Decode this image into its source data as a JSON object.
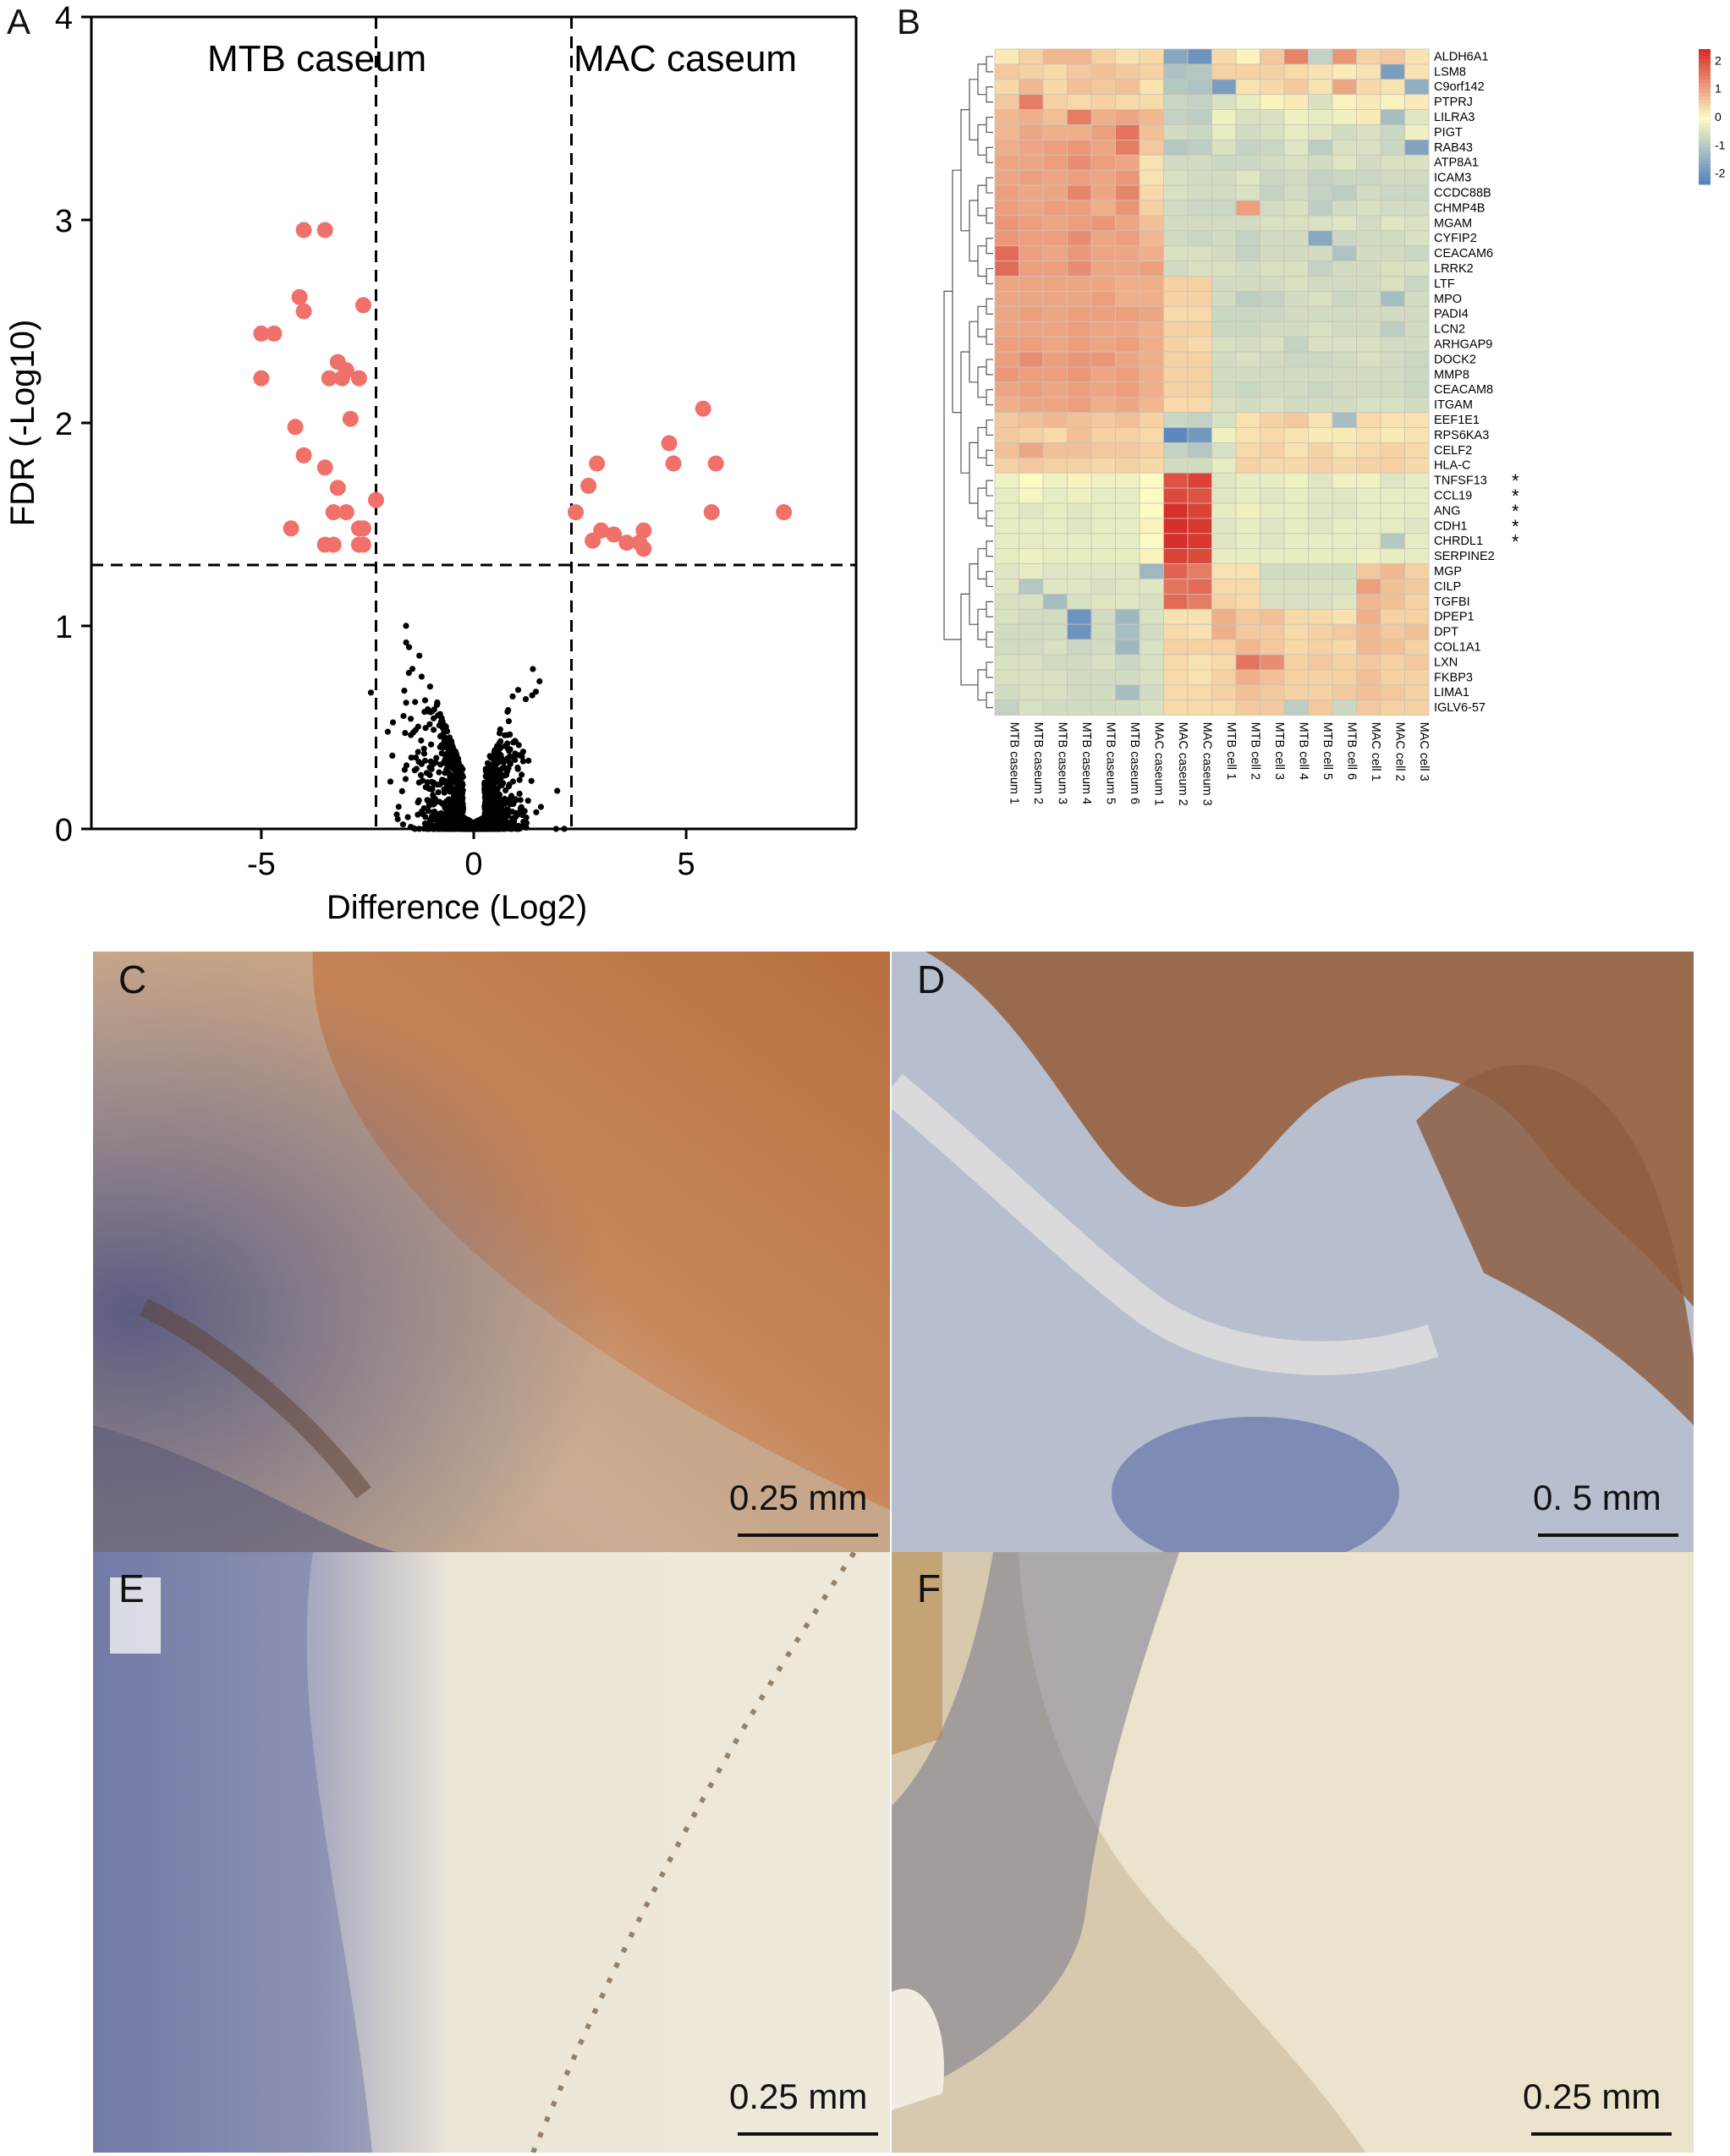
{
  "panels": {
    "a": {
      "letter": "A"
    },
    "b": {
      "letter": "B"
    },
    "c": {
      "letter": "C",
      "scalebar": "0.25 mm"
    },
    "d": {
      "letter": "D",
      "scalebar": "0. 5 mm"
    },
    "e": {
      "letter": "E",
      "scalebar": "0.25 mm"
    },
    "f": {
      "letter": "F",
      "scalebar": "0.25 mm"
    }
  },
  "colors": {
    "significant": "#f0706a",
    "nonsignificant": "#000000",
    "heat_high": "#d7302a",
    "heat_mid": "#fdfbc4",
    "heat_low": "#4f7fbd"
  },
  "chart_data": [
    {
      "type": "scatter",
      "xlabel": "Difference (Log2)",
      "ylabel": "FDR (-Log10)",
      "xlim": [
        -9,
        9
      ],
      "ylim": [
        0,
        4
      ],
      "xticks": [
        -5,
        0,
        5
      ],
      "yticks": [
        0,
        1,
        2,
        3,
        4
      ],
      "region_labels": {
        "left": "MTB caseum",
        "right": "MAC caseum"
      },
      "thresholds": {
        "x": [
          -2.3,
          2.3
        ],
        "y": 1.3
      },
      "significant_points": [
        [
          -4.0,
          2.95
        ],
        [
          -3.5,
          2.95
        ],
        [
          -4.1,
          2.62
        ],
        [
          -4.0,
          2.55
        ],
        [
          -2.6,
          2.58
        ],
        [
          -5.0,
          2.44
        ],
        [
          -4.7,
          2.44
        ],
        [
          -3.2,
          2.3
        ],
        [
          -3.0,
          2.26
        ],
        [
          -2.7,
          2.22
        ],
        [
          -3.4,
          2.22
        ],
        [
          -3.1,
          2.22
        ],
        [
          -5.0,
          2.22
        ],
        [
          -4.2,
          1.98
        ],
        [
          -2.9,
          2.02
        ],
        [
          -4.0,
          1.84
        ],
        [
          -3.5,
          1.78
        ],
        [
          -3.2,
          1.68
        ],
        [
          -3.0,
          1.56
        ],
        [
          -3.3,
          1.56
        ],
        [
          -2.3,
          1.62
        ],
        [
          -4.3,
          1.48
        ],
        [
          -2.7,
          1.48
        ],
        [
          -2.6,
          1.48
        ],
        [
          -3.5,
          1.4
        ],
        [
          -3.3,
          1.4
        ],
        [
          -2.7,
          1.4
        ],
        [
          -2.6,
          1.4
        ],
        [
          5.4,
          2.07
        ],
        [
          4.6,
          1.9
        ],
        [
          5.7,
          1.8
        ],
        [
          4.7,
          1.8
        ],
        [
          2.9,
          1.8
        ],
        [
          2.7,
          1.69
        ],
        [
          2.4,
          1.56
        ],
        [
          5.6,
          1.56
        ],
        [
          7.3,
          1.56
        ],
        [
          3.0,
          1.47
        ],
        [
          2.8,
          1.42
        ],
        [
          3.3,
          1.45
        ],
        [
          3.6,
          1.41
        ],
        [
          4.0,
          1.47
        ],
        [
          3.9,
          1.41
        ],
        [
          4.0,
          1.38
        ]
      ],
      "background": {
        "description_points": "dense cloud of non-significant proteins",
        "n": 1900
      }
    },
    {
      "type": "heatmap",
      "legend_ticks": [
        2,
        1,
        0,
        -1,
        -2
      ],
      "columns": [
        "MTB caseum 1",
        "MTB caseum 2",
        "MTB caseum 3",
        "MTB caseum 4",
        "MTB caseum 5",
        "MTB caseum 6",
        "MAC caseum 1",
        "MAC caseum 2",
        "MAC caseum 3",
        "MTB cell 1",
        "MTB cell 2",
        "MTB cell 3",
        "MTB cell 4",
        "MTB cell 5",
        "MTB cell 6",
        "MAC cell 1",
        "MAC cell 2",
        "MAC cell 3"
      ],
      "rows": [
        "ALDH6A1",
        "LSM8",
        "C9orf142",
        "PTPRJ",
        "LILRA3",
        "PIGT",
        "RAB43",
        "ATP8A1",
        "ICAM3",
        "CCDC88B",
        "CHMP4B",
        "MGAM",
        "CYFIP2",
        "CEACAM6",
        "LRRK2",
        "LTF",
        "MPO",
        "PADI4",
        "LCN2",
        "ARHGAP9",
        "DOCK2",
        "MMP8",
        "CEACAM8",
        "ITGAM",
        "EEF1E1",
        "RPS6KA3",
        "CELF2",
        "HLA-C",
        "TNFSF13",
        "CCL19",
        "ANG",
        "CDH1",
        "CHRDL1",
        "SERPINE2",
        "MGP",
        "CILP",
        "TGFBI",
        "DPEP1",
        "DPT",
        "COL1A1",
        "LXN",
        "FKBP3",
        "LIMA1",
        "IGLV6-57"
      ],
      "starred_rows": [
        "TNFSF13",
        "CCL19",
        "ANG",
        "CDH1",
        "CHRDL1"
      ],
      "star": "*",
      "values": [
        [
          0.2,
          0.5,
          0.8,
          0.8,
          0.5,
          0.3,
          0.4,
          -1.6,
          -2.0,
          0.4,
          0.1,
          0.6,
          1.4,
          -0.8,
          1.2,
          0.5,
          0.6,
          0.3
        ],
        [
          0.6,
          0.5,
          0.4,
          0.6,
          0.7,
          0.6,
          0.5,
          -1.1,
          -1.0,
          0.5,
          0.5,
          0.5,
          0.4,
          0.3,
          0.2,
          0.3,
          -1.8,
          0.3
        ],
        [
          0.4,
          0.8,
          0.4,
          0.7,
          0.6,
          0.7,
          0.3,
          -1.0,
          -1.1,
          -1.8,
          0.3,
          0.4,
          0.6,
          0.3,
          1.0,
          0.4,
          0.3,
          -1.5
        ],
        [
          0.6,
          1.5,
          0.5,
          0.4,
          0.5,
          0.4,
          0.4,
          -0.7,
          -0.8,
          -0.5,
          -0.3,
          0.1,
          0.2,
          -0.5,
          0.1,
          0.2,
          0.1,
          0.2
        ],
        [
          0.8,
          0.9,
          0.7,
          1.5,
          0.9,
          1.0,
          0.8,
          -0.8,
          -0.9,
          -0.2,
          -0.5,
          -0.5,
          -0.2,
          -0.3,
          -0.2,
          0.2,
          -1.2,
          -0.4
        ],
        [
          0.8,
          1.0,
          0.9,
          0.9,
          1.1,
          1.6,
          0.7,
          -0.6,
          -0.7,
          -0.3,
          -0.6,
          -0.5,
          -0.3,
          -0.4,
          -0.6,
          -0.5,
          -0.7,
          -0.2
        ],
        [
          0.9,
          1.0,
          1.1,
          1.2,
          1.0,
          1.5,
          0.6,
          -1.0,
          -0.9,
          -0.5,
          -0.8,
          -0.7,
          -0.4,
          -0.9,
          -0.5,
          -0.5,
          -0.7,
          -1.7
        ],
        [
          1.0,
          1.0,
          1.1,
          1.3,
          1.1,
          1.0,
          0.3,
          -0.6,
          -0.6,
          -0.7,
          -0.7,
          -0.6,
          -0.5,
          -0.6,
          -0.4,
          -0.6,
          -0.5,
          -0.5
        ],
        [
          1.0,
          1.1,
          1.0,
          1.1,
          1.0,
          1.2,
          0.3,
          -0.5,
          -0.6,
          -0.6,
          -0.4,
          -0.7,
          -0.6,
          -0.8,
          -0.7,
          -0.7,
          -0.6,
          -0.6
        ],
        [
          1.1,
          1.0,
          1.0,
          1.4,
          1.0,
          1.4,
          0.4,
          -0.5,
          -0.6,
          -0.6,
          -0.5,
          -0.8,
          -0.6,
          -0.8,
          -0.9,
          -0.6,
          -0.7,
          -0.7
        ],
        [
          1.1,
          1.0,
          1.1,
          1.1,
          0.9,
          1.2,
          0.5,
          -0.6,
          -0.7,
          -0.7,
          1.1,
          -0.6,
          -0.5,
          -0.9,
          -0.6,
          -0.5,
          -0.6,
          -0.6
        ],
        [
          1.2,
          1.1,
          1.0,
          1.1,
          1.2,
          1.0,
          0.7,
          -0.6,
          -0.6,
          -0.6,
          -0.6,
          -0.5,
          -0.5,
          -0.5,
          -0.4,
          -0.6,
          -0.4,
          -0.5
        ],
        [
          1.2,
          1.1,
          1.1,
          1.3,
          1.0,
          1.1,
          0.8,
          -0.6,
          -0.7,
          -0.6,
          -0.8,
          -0.6,
          -0.6,
          -1.6,
          -0.7,
          -0.6,
          -0.6,
          -0.5
        ],
        [
          1.7,
          1.1,
          1.0,
          1.2,
          1.0,
          1.0,
          0.9,
          -0.5,
          -0.5,
          -0.6,
          -0.8,
          -0.6,
          -0.6,
          -0.6,
          -1.1,
          -0.6,
          -0.6,
          -0.7
        ],
        [
          1.7,
          1.1,
          1.1,
          1.3,
          1.0,
          1.0,
          1.1,
          -0.6,
          -0.5,
          -0.5,
          -0.6,
          -0.5,
          -0.5,
          -0.8,
          -0.6,
          -0.6,
          -0.5,
          -0.5
        ],
        [
          1.0,
          1.0,
          1.0,
          1.0,
          1.0,
          0.9,
          0.9,
          0.5,
          0.5,
          -0.6,
          -0.6,
          -0.6,
          -0.5,
          -0.6,
          -0.6,
          -0.6,
          -0.5,
          -0.7
        ],
        [
          1.0,
          1.0,
          1.0,
          1.0,
          1.1,
          0.9,
          0.9,
          0.5,
          0.5,
          -0.6,
          -0.9,
          -0.8,
          -0.6,
          -0.5,
          -0.7,
          -0.6,
          -1.2,
          -0.6
        ],
        [
          1.0,
          1.1,
          1.0,
          1.1,
          1.1,
          1.1,
          1.0,
          0.4,
          0.4,
          -0.7,
          -0.7,
          -0.7,
          -0.6,
          -0.6,
          -0.6,
          -0.6,
          -0.6,
          -0.6
        ],
        [
          1.0,
          1.0,
          1.0,
          1.1,
          1.0,
          1.0,
          0.9,
          0.5,
          0.5,
          -0.7,
          -0.7,
          -0.6,
          -0.6,
          -0.5,
          -0.6,
          -0.6,
          -0.9,
          -0.6
        ],
        [
          1.1,
          1.1,
          1.0,
          1.1,
          1.0,
          1.1,
          0.9,
          0.5,
          0.4,
          -0.5,
          -0.6,
          -0.5,
          -0.8,
          -0.5,
          -0.5,
          -0.5,
          -0.6,
          -0.6
        ],
        [
          1.1,
          1.3,
          1.1,
          1.2,
          1.2,
          1.0,
          0.9,
          0.5,
          0.5,
          -0.6,
          -0.5,
          -0.6,
          -0.7,
          -0.7,
          -0.6,
          -0.5,
          -0.6,
          -0.7
        ],
        [
          1.2,
          1.1,
          1.1,
          1.2,
          1.0,
          1.1,
          0.9,
          0.5,
          0.5,
          -0.6,
          -0.6,
          -0.6,
          -0.6,
          -0.6,
          -0.6,
          -0.6,
          -0.6,
          -0.7
        ],
        [
          1.0,
          1.1,
          1.0,
          1.1,
          1.0,
          1.1,
          0.9,
          0.5,
          0.5,
          -0.6,
          -0.7,
          -0.6,
          -0.6,
          -0.7,
          -0.6,
          -0.6,
          -0.6,
          -0.7
        ],
        [
          0.9,
          1.0,
          1.0,
          1.1,
          0.9,
          1.0,
          0.8,
          0.4,
          0.4,
          -0.5,
          -0.6,
          -0.5,
          -0.6,
          -0.6,
          -0.6,
          -0.5,
          -0.5,
          -0.6
        ],
        [
          0.6,
          0.7,
          0.8,
          0.7,
          0.6,
          0.7,
          0.5,
          -0.7,
          -0.8,
          -0.5,
          0.3,
          0.5,
          0.6,
          0.3,
          -1.2,
          0.4,
          0.3,
          0.3
        ],
        [
          0.6,
          0.5,
          0.4,
          0.7,
          0.5,
          0.5,
          0.4,
          -2.2,
          -1.9,
          -0.2,
          0.3,
          0.4,
          0.3,
          0.2,
          0.2,
          0.3,
          0.2,
          0.3
        ],
        [
          0.7,
          1.0,
          0.7,
          0.7,
          0.6,
          0.6,
          0.5,
          -0.8,
          -1.0,
          -0.5,
          0.4,
          0.5,
          0.3,
          0.5,
          0.3,
          0.4,
          0.5,
          0.4
        ],
        [
          0.5,
          0.6,
          0.5,
          0.5,
          0.4,
          0.5,
          0.4,
          -0.6,
          -0.6,
          -0.3,
          0.5,
          0.4,
          0.4,
          0.5,
          0.4,
          0.5,
          0.5,
          0.4
        ],
        [
          -0.2,
          0.0,
          -0.2,
          0.1,
          -0.2,
          -0.2,
          0.0,
          2.0,
          2.2,
          -0.4,
          -0.3,
          -0.3,
          -0.2,
          -0.4,
          -0.2,
          -0.2,
          -0.4,
          -0.3
        ],
        [
          -0.3,
          -0.1,
          -0.3,
          -0.2,
          -0.3,
          -0.3,
          0.0,
          2.1,
          2.0,
          -0.4,
          -0.3,
          -0.4,
          -0.3,
          -0.4,
          -0.4,
          -0.3,
          -0.3,
          -0.3
        ],
        [
          -0.3,
          -0.4,
          -0.3,
          -0.4,
          -0.3,
          -0.3,
          0.0,
          2.4,
          2.2,
          -0.3,
          -0.2,
          -0.3,
          -0.3,
          -0.4,
          -0.4,
          -0.3,
          -0.3,
          -0.3
        ],
        [
          -0.3,
          -0.3,
          -0.3,
          -0.4,
          -0.3,
          -0.3,
          0.1,
          2.4,
          2.3,
          -0.4,
          -0.3,
          -0.4,
          -0.3,
          -0.4,
          -0.3,
          -0.3,
          -0.3,
          -0.4
        ],
        [
          -0.3,
          -0.3,
          -0.3,
          -0.3,
          -0.3,
          -0.3,
          0.0,
          2.4,
          2.3,
          -0.4,
          -0.3,
          -0.4,
          -0.3,
          -0.3,
          -0.3,
          -0.3,
          -1.0,
          -0.3
        ],
        [
          -0.3,
          -0.2,
          -0.3,
          -0.3,
          -0.3,
          -0.3,
          0.1,
          2.2,
          2.1,
          -0.3,
          -0.3,
          -0.3,
          -0.3,
          -0.3,
          -0.3,
          -0.2,
          -0.3,
          -0.3
        ],
        [
          -0.4,
          -0.3,
          -0.4,
          -0.4,
          -0.4,
          -0.4,
          -1.3,
          1.8,
          1.5,
          0.3,
          0.3,
          -0.6,
          -0.6,
          -0.6,
          -0.6,
          0.6,
          0.8,
          0.5
        ],
        [
          -0.4,
          -1.0,
          -0.4,
          -0.4,
          -0.5,
          -0.4,
          -0.4,
          1.6,
          1.7,
          0.4,
          0.4,
          -0.5,
          -0.5,
          -0.5,
          -0.5,
          1.1,
          0.7,
          0.6
        ],
        [
          -0.5,
          -0.5,
          -1.2,
          -0.5,
          -0.4,
          -0.4,
          -0.5,
          1.7,
          1.5,
          0.5,
          0.4,
          -0.5,
          -0.5,
          -0.5,
          -0.4,
          0.8,
          0.7,
          0.5
        ],
        [
          -0.5,
          -0.6,
          -0.6,
          -2.0,
          -0.6,
          -1.3,
          -0.5,
          0.3,
          0.3,
          0.9,
          0.6,
          0.7,
          0.4,
          0.4,
          0.3,
          0.9,
          0.5,
          0.5
        ],
        [
          -0.6,
          -0.6,
          -0.6,
          -2.0,
          -0.6,
          -1.2,
          -0.6,
          0.4,
          0.3,
          0.9,
          0.6,
          0.6,
          0.4,
          0.5,
          0.6,
          0.8,
          0.6,
          0.7
        ],
        [
          -0.6,
          -0.6,
          -0.5,
          -0.7,
          -0.6,
          -1.3,
          -0.5,
          0.5,
          0.5,
          0.5,
          0.8,
          0.6,
          0.4,
          0.5,
          0.4,
          0.8,
          0.7,
          0.5
        ],
        [
          -0.5,
          -0.5,
          -0.6,
          -0.6,
          -0.5,
          -0.7,
          -0.5,
          0.4,
          0.3,
          0.4,
          1.6,
          1.3,
          0.5,
          0.6,
          0.5,
          0.6,
          0.5,
          0.6
        ],
        [
          -0.5,
          -0.5,
          -0.5,
          -0.6,
          -0.6,
          -0.6,
          -0.5,
          0.4,
          0.3,
          0.5,
          0.9,
          0.7,
          0.5,
          0.5,
          0.5,
          0.7,
          0.5,
          0.5
        ],
        [
          -0.6,
          -0.5,
          -0.5,
          -0.6,
          -0.6,
          -1.2,
          -0.6,
          0.4,
          0.4,
          0.5,
          0.7,
          0.6,
          0.5,
          0.5,
          0.6,
          0.7,
          0.6,
          0.5
        ],
        [
          -0.8,
          -0.5,
          -0.6,
          -0.6,
          -0.6,
          -0.6,
          -0.5,
          0.4,
          0.4,
          0.4,
          0.6,
          0.6,
          -0.9,
          0.6,
          -0.7,
          0.6,
          0.5,
          0.5
        ]
      ]
    }
  ]
}
